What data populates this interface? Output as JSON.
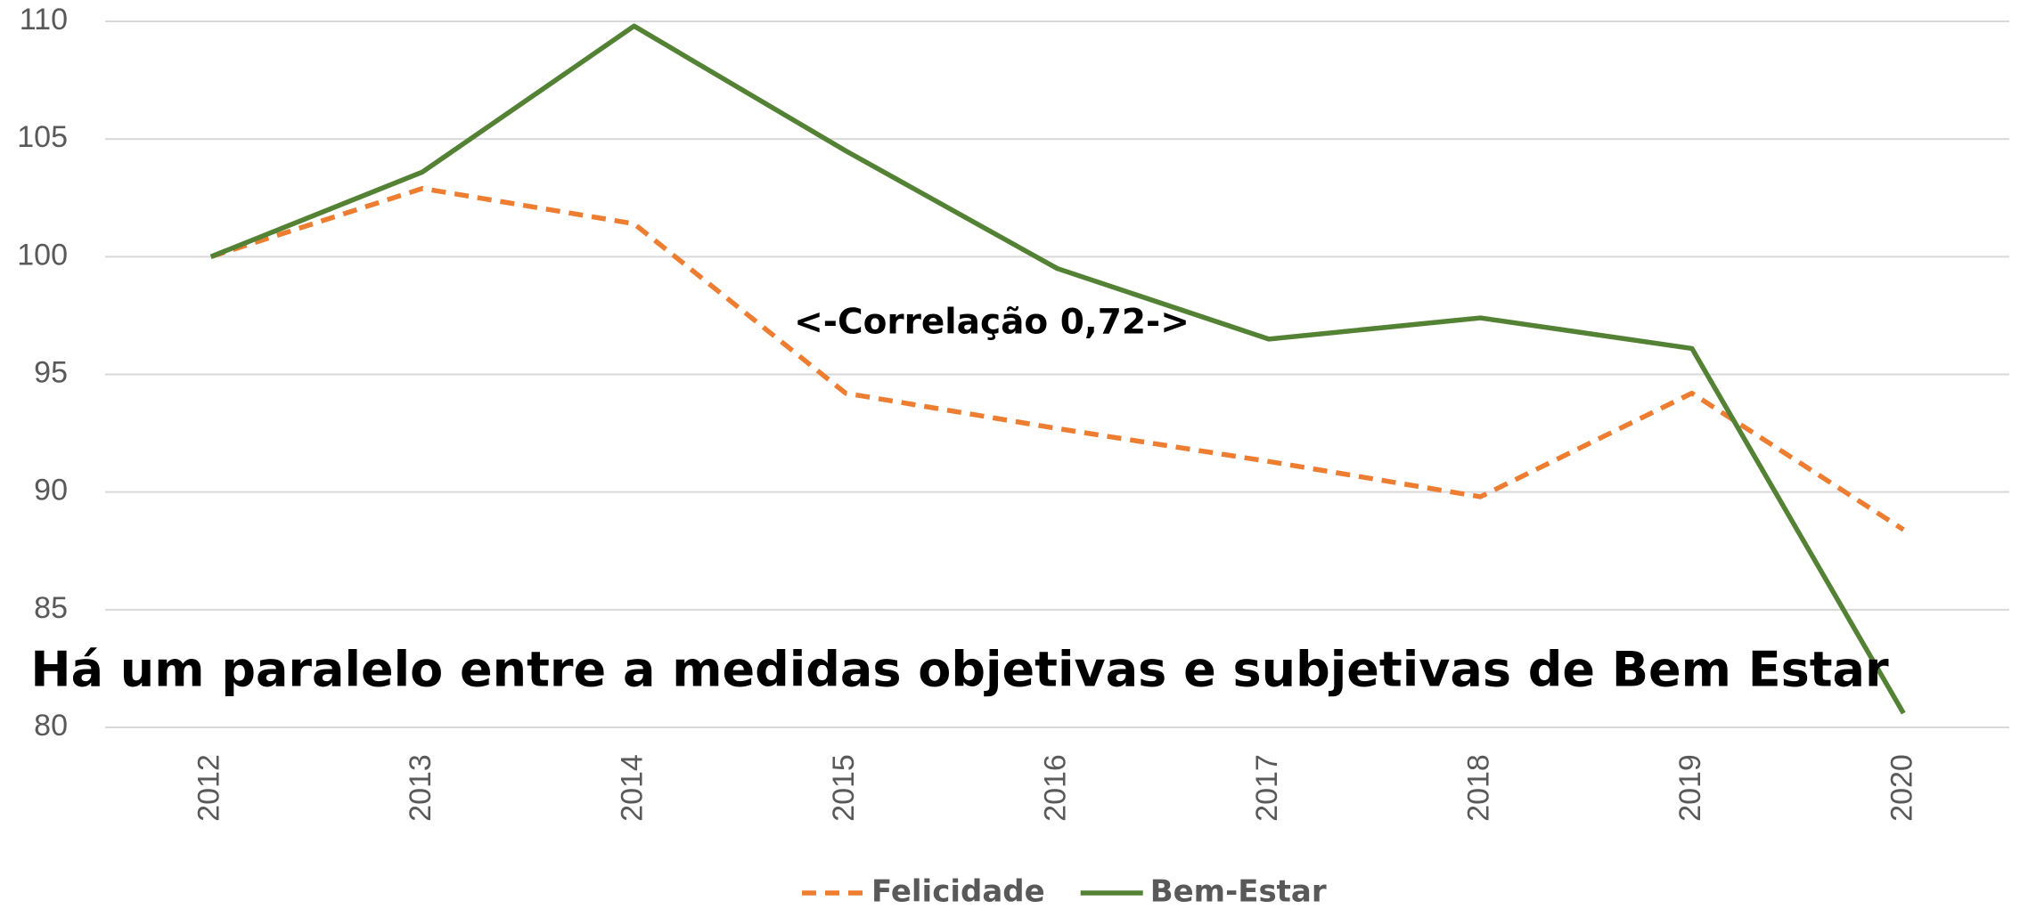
{
  "chart_data": {
    "type": "line",
    "categories": [
      "2012",
      "2013",
      "2014",
      "2015",
      "2016",
      "2017",
      "2018",
      "2019",
      "2020"
    ],
    "series": [
      {
        "name": "Felicidade",
        "color": "#ED7D31",
        "dashed": true,
        "values": [
          100,
          102.9,
          101.4,
          94.2,
          92.7,
          91.3,
          89.8,
          94.2,
          88.4
        ]
      },
      {
        "name": "Bem-Estar",
        "color": "#548235",
        "dashed": false,
        "values": [
          100,
          103.6,
          109.8,
          104.5,
          99.5,
          96.5,
          97.4,
          96.1,
          80.6
        ]
      }
    ],
    "ylim": [
      80,
      110
    ],
    "yticks": [
      80,
      85,
      90,
      95,
      100,
      105,
      110
    ],
    "grid": true,
    "legend": "bottom",
    "annotations": [
      "<-Correlação 0,72->",
      "Há um paralelo entre a medidas objetivas e subjetivas de Bem Estar"
    ]
  }
}
